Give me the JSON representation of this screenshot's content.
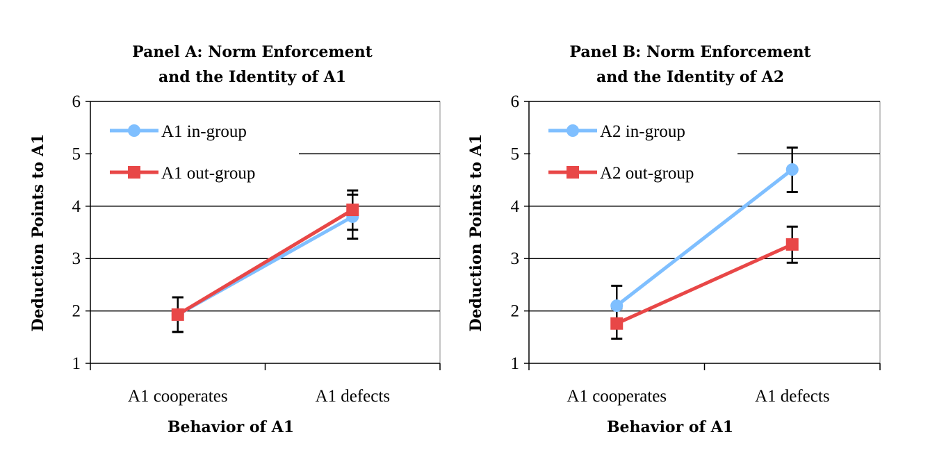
{
  "chart_data": [
    {
      "type": "line",
      "title": [
        "Panel A: Norm Enforcement",
        "and the Identity of A1"
      ],
      "xlabel": "Behavior of A1",
      "ylabel": "Deduction Points to A1",
      "categories": [
        "A1 cooperates",
        "A1 defects"
      ],
      "ylim": [
        1,
        6
      ],
      "yticks": [
        "1",
        "2",
        "3",
        "4",
        "5",
        "6"
      ],
      "grid": true,
      "legend_position": "top-left",
      "series": [
        {
          "name": "A1 in-group",
          "color": "#7fbfff",
          "marker": "circle",
          "values": [
            1.93,
            3.8
          ],
          "err_low": [
            1.6,
            3.38
          ],
          "err_high": [
            2.26,
            4.22
          ]
        },
        {
          "name": "A1 out-group",
          "color": "#e84747",
          "marker": "square",
          "values": [
            1.93,
            3.93
          ],
          "err_low": [
            1.6,
            3.55
          ],
          "err_high": [
            2.26,
            4.3
          ]
        }
      ]
    },
    {
      "type": "line",
      "title": [
        "Panel B: Norm Enforcement",
        "and the Identity of A2"
      ],
      "xlabel": "Behavior of A1",
      "ylabel": "Deduction Points to A1",
      "categories": [
        "A1 cooperates",
        "A1 defects"
      ],
      "ylim": [
        1,
        6
      ],
      "yticks": [
        "1",
        "2",
        "3",
        "4",
        "5",
        "6"
      ],
      "grid": true,
      "legend_position": "top-left",
      "series": [
        {
          "name": "A2 in-group",
          "color": "#7fbfff",
          "marker": "circle",
          "values": [
            2.1,
            4.7
          ],
          "err_low": [
            1.72,
            4.27
          ],
          "err_high": [
            2.48,
            5.12
          ]
        },
        {
          "name": "A2 out-group",
          "color": "#e84747",
          "marker": "square",
          "values": [
            1.76,
            3.27
          ],
          "err_low": [
            1.47,
            2.92
          ],
          "err_high": [
            2.05,
            3.61
          ]
        }
      ]
    }
  ]
}
